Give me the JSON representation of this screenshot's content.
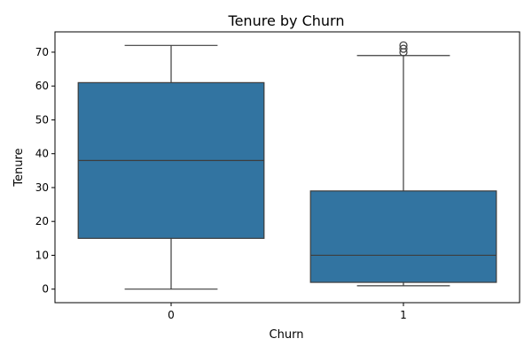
{
  "chart_data": {
    "type": "box",
    "title": "Tenure by Churn",
    "xlabel": "Churn",
    "ylabel": "Tenure",
    "categories": [
      "0",
      "1"
    ],
    "ylim": [
      -4,
      76
    ],
    "yticks": [
      0,
      10,
      20,
      30,
      40,
      50,
      60,
      70
    ],
    "grid": false,
    "color": "#3274a1",
    "boxes": [
      {
        "category": "0",
        "whisker_low": 0,
        "q1": 15,
        "median": 38,
        "q3": 61,
        "whisker_high": 72,
        "outliers": []
      },
      {
        "category": "1",
        "whisker_low": 1,
        "q1": 2,
        "median": 10,
        "q3": 29,
        "whisker_high": 69,
        "outliers": [
          70,
          71,
          72
        ]
      }
    ]
  }
}
